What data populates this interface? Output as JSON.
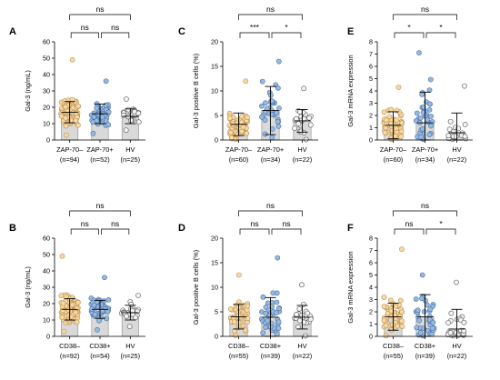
{
  "colors": {
    "bar_fill": "#d9d9d9",
    "zap_neg_fill": "#f6d9a3",
    "zap_neg_stroke": "#b8894a",
    "zap_pos_fill": "#9ab8dc",
    "zap_pos_stroke": "#3d6ba8",
    "hv_fill": "#f4f4f4",
    "hv_stroke": "#4a4a4a"
  },
  "chart_data": [
    {
      "panel": "A",
      "type": "bar",
      "ylabel": "Gal-3 (ng/mL)",
      "ylim": [
        0,
        60
      ],
      "yticks": [
        0,
        10,
        20,
        30,
        40,
        50,
        60
      ],
      "categories": [
        "ZAP-70–",
        "ZAP-70+",
        "HV"
      ],
      "category_ns": [
        "(n=94)",
        "(n=52)",
        "(n=25)"
      ],
      "values": [
        17,
        16,
        14.5
      ],
      "sd": [
        6.5,
        6,
        4.5
      ],
      "point_ranges": [
        [
          3,
          49
        ],
        [
          4,
          36
        ],
        [
          6,
          25
        ]
      ],
      "significance": [
        {
          "from": 0,
          "to": 1,
          "label": "ns"
        },
        {
          "from": 1,
          "to": 2,
          "label": "ns"
        },
        {
          "from": 0,
          "to": 2,
          "label": "ns"
        }
      ]
    },
    {
      "panel": "C",
      "type": "bar",
      "ylabel": "Gal-3 positive B cells (%)",
      "ylim": [
        0,
        20
      ],
      "yticks": [
        0,
        5,
        10,
        15,
        20
      ],
      "categories": [
        "ZAP-70–",
        "ZAP-70+",
        "HV"
      ],
      "category_ns": [
        "(n=60)",
        "(n=34)",
        "(n=22)"
      ],
      "values": [
        3.2,
        6.0,
        3.9
      ],
      "sd": [
        2.3,
        4.9,
        2.3
      ],
      "point_ranges": [
        [
          0.2,
          12
        ],
        [
          0.5,
          16
        ],
        [
          0.1,
          10.5
        ]
      ],
      "significance": [
        {
          "from": 0,
          "to": 1,
          "label": "***"
        },
        {
          "from": 1,
          "to": 2,
          "label": "*"
        },
        {
          "from": 0,
          "to": 2,
          "label": "ns"
        }
      ]
    },
    {
      "panel": "E",
      "type": "bar",
      "ylabel": "Gal-3 mRNA expression",
      "ylim": [
        0,
        8
      ],
      "yticks": [
        0,
        1,
        2,
        3,
        4,
        5,
        6,
        7,
        8
      ],
      "categories": [
        "ZAP-70–",
        "ZAP-70+",
        "HV"
      ],
      "category_ns": [
        "(n=60)",
        "(n=34)",
        "(n=22)"
      ],
      "values": [
        1.2,
        1.4,
        0.6
      ],
      "sd": [
        1.1,
        2.5,
        1.6
      ],
      "point_ranges": [
        [
          0.05,
          4.3
        ],
        [
          0.05,
          7.1
        ],
        [
          0.05,
          4.4
        ]
      ],
      "significance": [
        {
          "from": 0,
          "to": 1,
          "label": "*"
        },
        {
          "from": 1,
          "to": 2,
          "label": "*"
        },
        {
          "from": 0,
          "to": 2,
          "label": "ns"
        }
      ]
    },
    {
      "panel": "B",
      "type": "bar",
      "ylabel": "Gal-3 (ng/mL)",
      "ylim": [
        0,
        60
      ],
      "yticks": [
        0,
        10,
        20,
        30,
        40,
        50,
        60
      ],
      "categories": [
        "CD38–",
        "CD38+",
        "HV"
      ],
      "category_ns": [
        "(n=92)",
        "(n=54)",
        "(n=25)"
      ],
      "values": [
        16.5,
        16.5,
        14.5
      ],
      "sd": [
        6.5,
        5.5,
        4.5
      ],
      "point_ranges": [
        [
          3,
          49
        ],
        [
          4,
          36
        ],
        [
          6,
          25
        ]
      ],
      "significance": [
        {
          "from": 0,
          "to": 1,
          "label": "ns"
        },
        {
          "from": 1,
          "to": 2,
          "label": "ns"
        },
        {
          "from": 0,
          "to": 2,
          "label": "ns"
        }
      ]
    },
    {
      "panel": "D",
      "type": "bar",
      "ylabel": "Gal-3 positive B cells (%)",
      "ylim": [
        0,
        20
      ],
      "yticks": [
        0,
        5,
        10,
        15,
        20
      ],
      "categories": [
        "CD38–",
        "CD38+",
        "HV"
      ],
      "category_ns": [
        "(n=55)",
        "(n=39)",
        "(n=22)"
      ],
      "values": [
        4.0,
        3.9,
        3.9
      ],
      "sd": [
        2.5,
        4.0,
        2.4
      ],
      "point_ranges": [
        [
          0.2,
          12.5
        ],
        [
          0.5,
          16
        ],
        [
          0.1,
          10.5
        ]
      ],
      "significance": [
        {
          "from": 0,
          "to": 1,
          "label": "ns"
        },
        {
          "from": 1,
          "to": 2,
          "label": "ns"
        },
        {
          "from": 0,
          "to": 2,
          "label": "ns"
        }
      ]
    },
    {
      "panel": "F",
      "type": "bar",
      "ylabel": "Gal-3 mRNA expression",
      "ylim": [
        0,
        8
      ],
      "yticks": [
        0,
        1,
        2,
        3,
        4,
        5,
        6,
        7,
        8
      ],
      "categories": [
        "CD38–",
        "CD38+",
        "HV"
      ],
      "category_ns": [
        "(n=55)",
        "(n=39)",
        "(n=22)"
      ],
      "values": [
        1.6,
        1.6,
        0.6
      ],
      "sd": [
        1.1,
        1.8,
        1.6
      ],
      "point_ranges": [
        [
          0.05,
          7.1
        ],
        [
          0.05,
          5.0
        ],
        [
          0.05,
          4.4
        ]
      ],
      "significance": [
        {
          "from": 0,
          "to": 1,
          "label": "ns"
        },
        {
          "from": 1,
          "to": 2,
          "label": "*"
        },
        {
          "from": 0,
          "to": 2,
          "label": "ns"
        }
      ]
    }
  ]
}
